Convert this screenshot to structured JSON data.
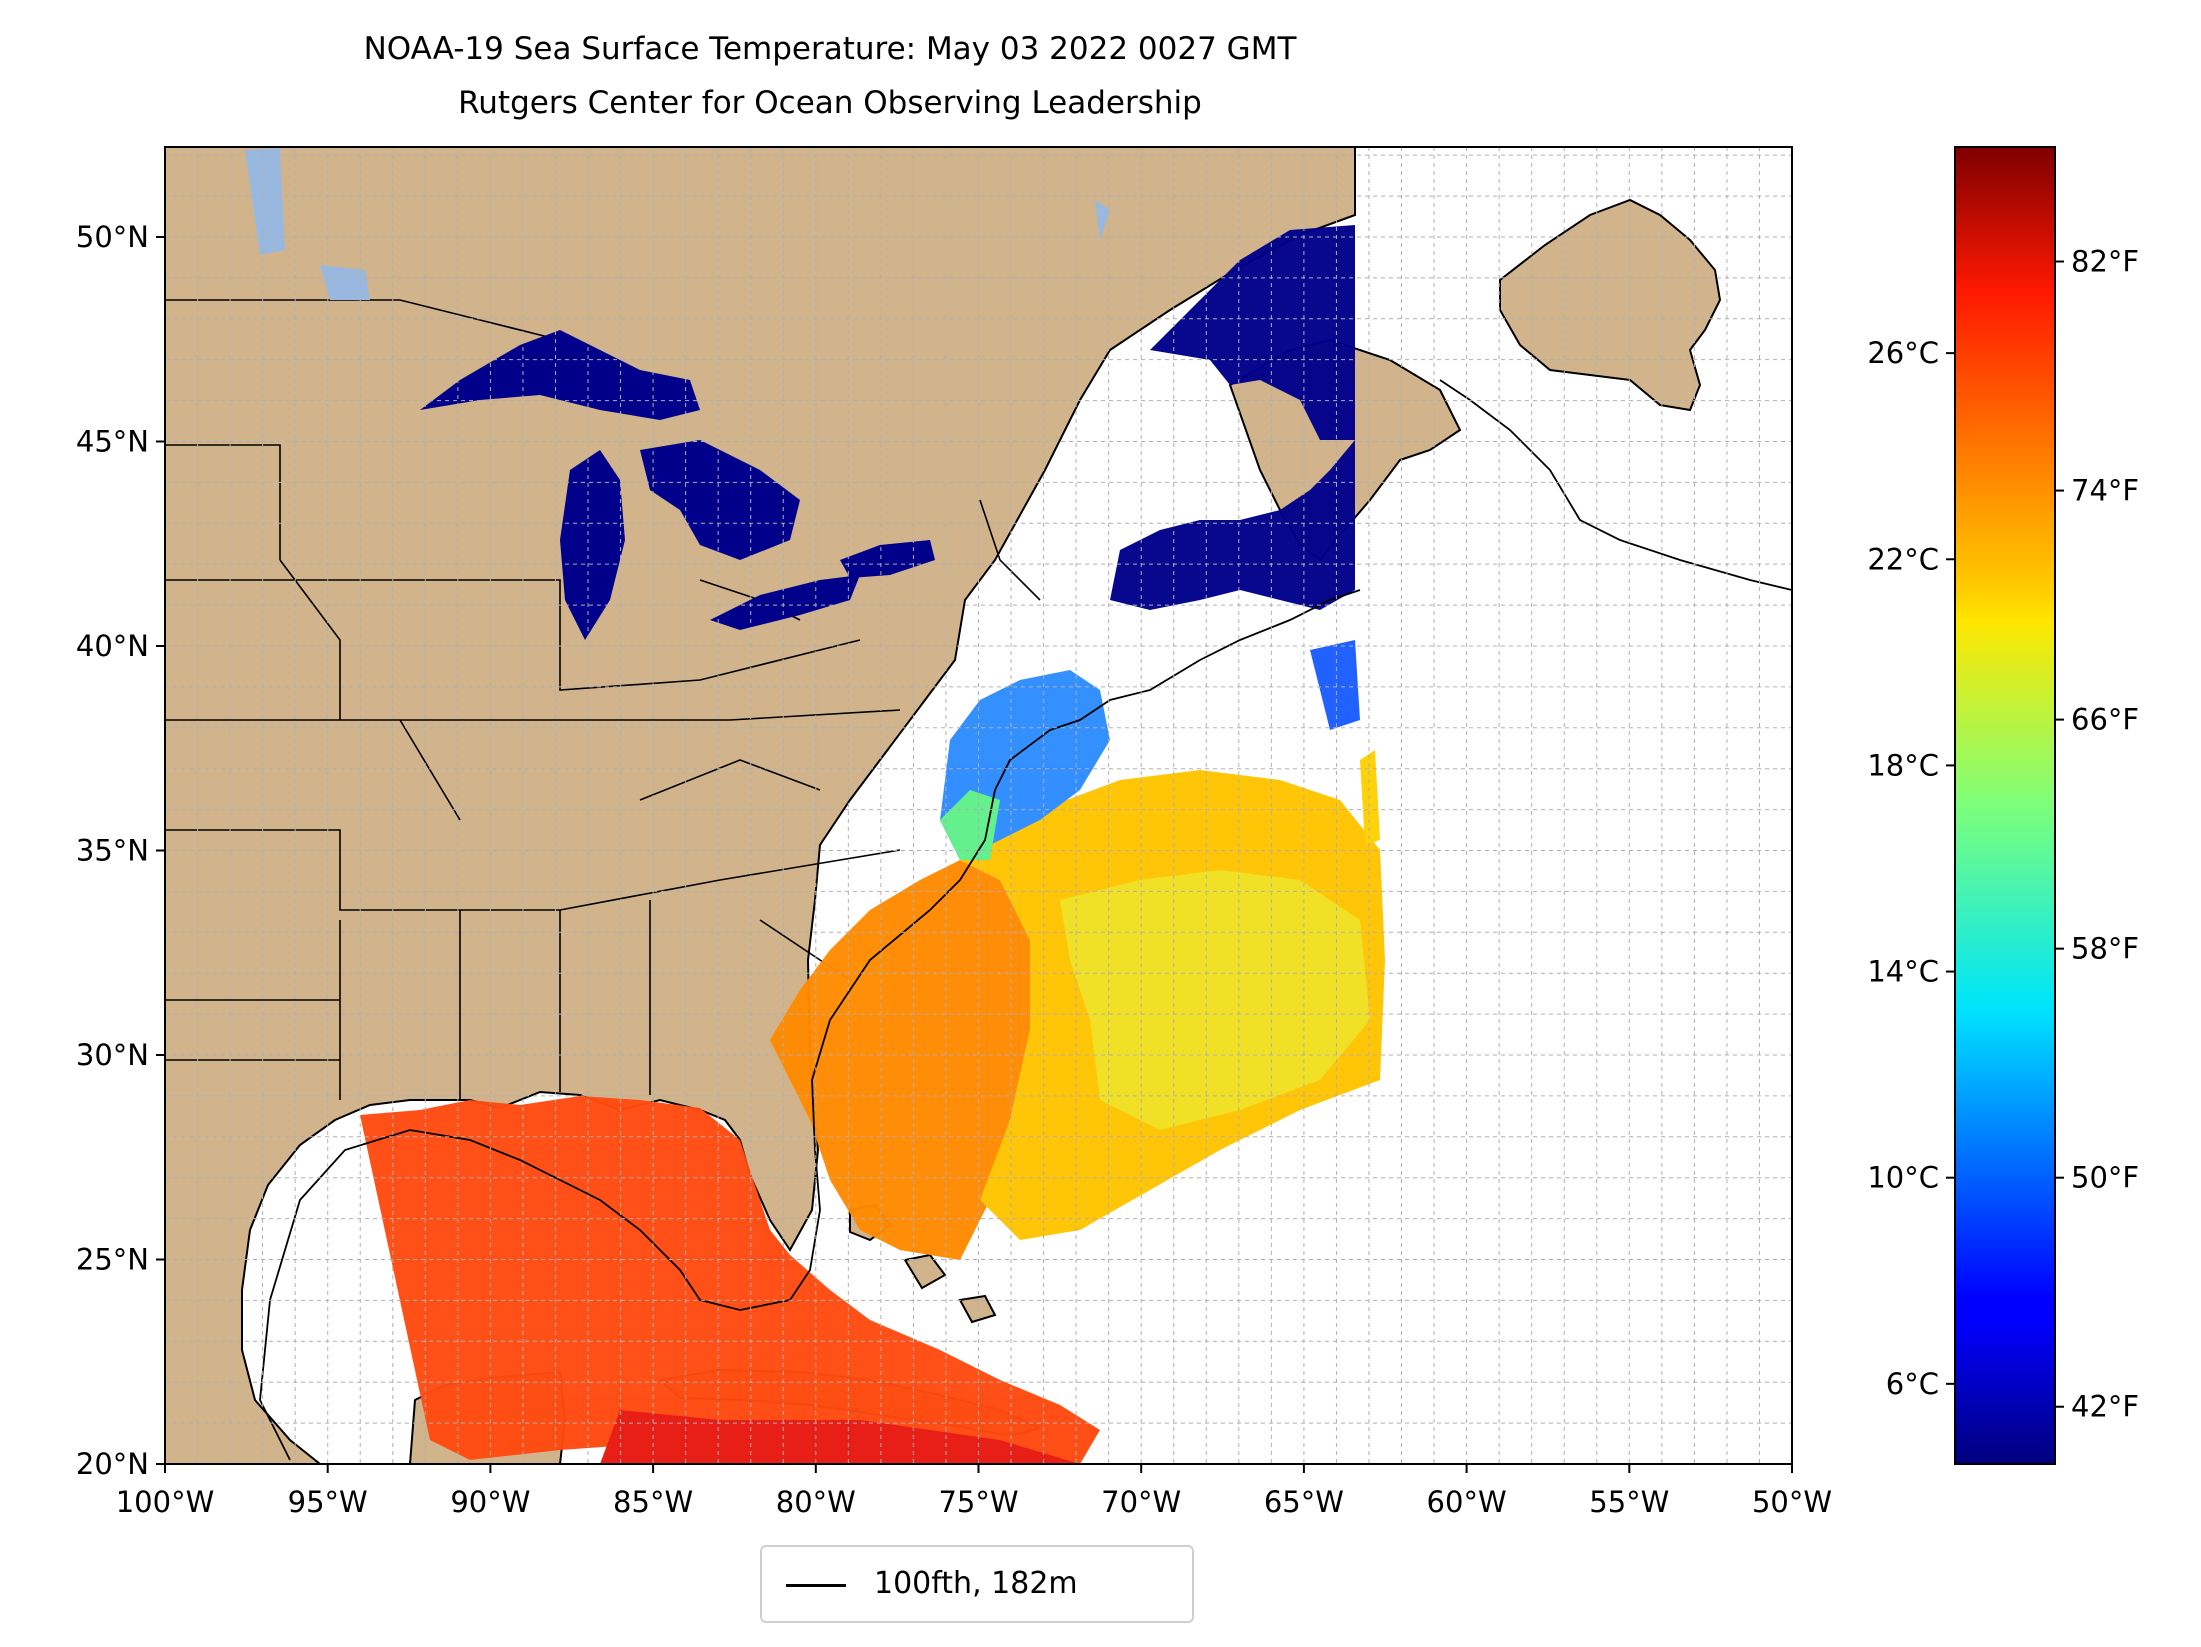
{
  "title": {
    "line1": "NOAA-19 Sea Surface Temperature: May 03 2022 0027 GMT",
    "line2": "Rutgers Center for Ocean Observing Leadership"
  },
  "chart_data": {
    "type": "heatmap",
    "projection": "lat-lon",
    "xlim": [
      -100,
      -50
    ],
    "ylim": [
      20,
      52.2
    ],
    "x_ticks": [
      {
        "value": -100,
        "label": "100°W"
      },
      {
        "value": -95,
        "label": "95°W"
      },
      {
        "value": -90,
        "label": "90°W"
      },
      {
        "value": -85,
        "label": "85°W"
      },
      {
        "value": -80,
        "label": "80°W"
      },
      {
        "value": -75,
        "label": "75°W"
      },
      {
        "value": -70,
        "label": "70°W"
      },
      {
        "value": -65,
        "label": "65°W"
      },
      {
        "value": -60,
        "label": "60°W"
      },
      {
        "value": -55,
        "label": "55°W"
      },
      {
        "value": -50,
        "label": "50°W"
      }
    ],
    "y_ticks": [
      {
        "value": 20,
        "label": "20°N"
      },
      {
        "value": 25,
        "label": "25°N"
      },
      {
        "value": 30,
        "label": "30°N"
      },
      {
        "value": 35,
        "label": "35°N"
      },
      {
        "value": 40,
        "label": "40°N"
      },
      {
        "value": 45,
        "label": "45°N"
      },
      {
        "value": 50,
        "label": "50°N"
      }
    ],
    "grid": true,
    "colorbar": {
      "colormap": "jet",
      "range_f": [
        40,
        86
      ],
      "celsius_ticks": [
        {
          "value": 6,
          "label": "6°C"
        },
        {
          "value": 10,
          "label": "10°C"
        },
        {
          "value": 14,
          "label": "14°C"
        },
        {
          "value": 18,
          "label": "18°C"
        },
        {
          "value": 22,
          "label": "22°C"
        },
        {
          "value": 26,
          "label": "26°C"
        }
      ],
      "fahrenheit_ticks": [
        {
          "value": 42,
          "label": "42°F"
        },
        {
          "value": 50,
          "label": "50°F"
        },
        {
          "value": 58,
          "label": "58°F"
        },
        {
          "value": 66,
          "label": "66°F"
        },
        {
          "value": 74,
          "label": "74°F"
        },
        {
          "value": 82,
          "label": "82°F"
        }
      ]
    },
    "sst_regions": [
      {
        "name": "gulf-of-mexico",
        "temp_f": 80
      },
      {
        "name": "caribbean-cuba",
        "temp_f": 83
      },
      {
        "name": "gulf-stream",
        "temp_f": 77
      },
      {
        "name": "sargasso-sea",
        "temp_f": 71
      },
      {
        "name": "great-lakes",
        "temp_f": 40
      },
      {
        "name": "gulf-of-maine",
        "temp_f": 42
      },
      {
        "name": "mid-atlantic-shelf",
        "temp_f": 54
      }
    ],
    "legend": {
      "placement": "below",
      "entries": [
        "100fth, 182m"
      ]
    }
  },
  "colors": {
    "land": "#d2b48c",
    "water_bodies": "#99b8e0",
    "cold": "#00008b"
  }
}
